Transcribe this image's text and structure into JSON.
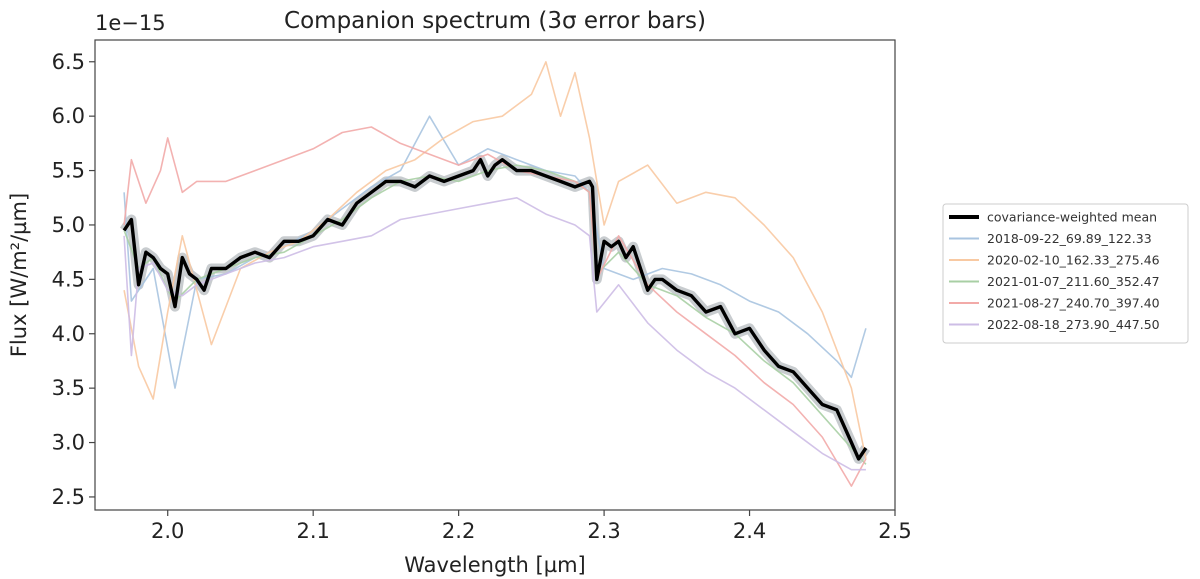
{
  "chart_data": {
    "type": "line",
    "title": "Companion spectrum (3σ error bars)",
    "xlabel": "Wavelength [µm]",
    "ylabel": "Flux [W/m²/µm]",
    "y_offset_label": "1e−15",
    "xlim": [
      1.95,
      2.5
    ],
    "ylim": [
      2.38,
      6.7
    ],
    "xticks": [
      2.0,
      2.1,
      2.2,
      2.3,
      2.4,
      2.5
    ],
    "xtick_labels": [
      "2.0",
      "2.1",
      "2.2",
      "2.3",
      "2.4",
      "2.5"
    ],
    "yticks": [
      2.5,
      3.0,
      3.5,
      4.0,
      4.5,
      5.0,
      5.5,
      6.0,
      6.5
    ],
    "ytick_labels": [
      "2.5",
      "3.0",
      "3.5",
      "4.0",
      "4.5",
      "5.0",
      "5.5",
      "6.0",
      "6.5"
    ],
    "legend_position": "right, outside plot",
    "error_band_color": "#9aa3a8",
    "series": [
      {
        "name": "2018-09-22_69.89_122.33",
        "color": "#a9c4e0",
        "x": [
          1.97,
          1.975,
          1.99,
          2.005,
          2.02,
          2.04,
          2.06,
          2.08,
          2.1,
          2.12,
          2.14,
          2.16,
          2.18,
          2.2,
          2.22,
          2.24,
          2.26,
          2.28,
          2.29,
          2.3,
          2.32,
          2.34,
          2.36,
          2.38,
          2.4,
          2.42,
          2.44,
          2.46,
          2.47,
          2.48
        ],
        "y": [
          5.3,
          4.3,
          4.6,
          3.5,
          4.5,
          4.55,
          4.7,
          4.8,
          4.95,
          5.15,
          5.35,
          5.5,
          6.0,
          5.55,
          5.7,
          5.6,
          5.5,
          5.45,
          5.3,
          4.6,
          4.5,
          4.6,
          4.55,
          4.45,
          4.3,
          4.2,
          4.0,
          3.75,
          3.6,
          4.05
        ]
      },
      {
        "name": "2020-02-10_162.33_275.46",
        "color": "#f8c9a2",
        "x": [
          1.97,
          1.98,
          1.99,
          2.0,
          2.01,
          2.02,
          2.03,
          2.05,
          2.07,
          2.09,
          2.11,
          2.13,
          2.15,
          2.17,
          2.19,
          2.21,
          2.23,
          2.25,
          2.26,
          2.27,
          2.28,
          2.29,
          2.3,
          2.31,
          2.33,
          2.35,
          2.37,
          2.39,
          2.41,
          2.43,
          2.45,
          2.47,
          2.48
        ],
        "y": [
          4.4,
          3.7,
          3.4,
          4.2,
          4.9,
          4.4,
          3.9,
          4.6,
          4.75,
          4.85,
          5.05,
          5.3,
          5.5,
          5.6,
          5.8,
          5.95,
          6.0,
          6.2,
          6.5,
          6.0,
          6.4,
          5.8,
          5.0,
          5.4,
          5.55,
          5.2,
          5.3,
          5.25,
          5.0,
          4.7,
          4.2,
          3.5,
          2.85
        ]
      },
      {
        "name": "2021-01-07_211.60_352.47",
        "color": "#a8cfa4",
        "x": [
          1.97,
          1.98,
          1.99,
          2.0,
          2.005,
          2.02,
          2.04,
          2.06,
          2.08,
          2.1,
          2.12,
          2.14,
          2.16,
          2.18,
          2.2,
          2.22,
          2.24,
          2.26,
          2.28,
          2.29,
          2.295,
          2.31,
          2.33,
          2.35,
          2.37,
          2.39,
          2.41,
          2.43,
          2.45,
          2.47,
          2.48
        ],
        "y": [
          4.95,
          4.6,
          4.7,
          4.4,
          4.3,
          4.5,
          4.6,
          4.7,
          4.75,
          4.9,
          5.05,
          5.25,
          5.4,
          5.45,
          5.4,
          5.5,
          5.55,
          5.5,
          5.4,
          5.3,
          4.55,
          4.75,
          4.45,
          4.35,
          4.15,
          4.0,
          3.75,
          3.55,
          3.25,
          2.95,
          2.8
        ]
      },
      {
        "name": "2021-08-27_240.70_397.40",
        "color": "#f2aaa8",
        "x": [
          1.97,
          1.975,
          1.985,
          1.995,
          2.0,
          2.01,
          2.02,
          2.04,
          2.06,
          2.08,
          2.1,
          2.12,
          2.14,
          2.16,
          2.18,
          2.2,
          2.22,
          2.24,
          2.26,
          2.28,
          2.29,
          2.295,
          2.31,
          2.33,
          2.35,
          2.37,
          2.39,
          2.41,
          2.43,
          2.45,
          2.47,
          2.48
        ],
        "y": [
          5.0,
          5.6,
          5.2,
          5.5,
          5.8,
          5.3,
          5.4,
          5.4,
          5.5,
          5.6,
          5.7,
          5.85,
          5.9,
          5.75,
          5.65,
          5.55,
          5.65,
          5.5,
          5.45,
          5.4,
          5.3,
          4.5,
          4.9,
          4.45,
          4.2,
          4.0,
          3.8,
          3.55,
          3.35,
          3.05,
          2.6,
          2.85
        ]
      },
      {
        "name": "2022-08-18_273.90_447.50",
        "color": "#cdbde6",
        "x": [
          1.97,
          1.975,
          1.98,
          1.99,
          2.0,
          2.01,
          2.02,
          2.04,
          2.06,
          2.08,
          2.1,
          2.12,
          2.14,
          2.16,
          2.18,
          2.2,
          2.22,
          2.24,
          2.26,
          2.28,
          2.29,
          2.295,
          2.31,
          2.33,
          2.35,
          2.37,
          2.39,
          2.41,
          2.43,
          2.45,
          2.47,
          2.48
        ],
        "y": [
          4.9,
          3.8,
          4.6,
          4.65,
          4.4,
          4.35,
          4.45,
          4.55,
          4.65,
          4.7,
          4.8,
          4.85,
          4.9,
          5.05,
          5.1,
          5.15,
          5.2,
          5.25,
          5.1,
          5.0,
          4.9,
          4.2,
          4.45,
          4.1,
          3.85,
          3.65,
          3.5,
          3.3,
          3.1,
          2.9,
          2.75,
          2.75
        ]
      },
      {
        "name": "covariance-weighted mean",
        "color": "#000000",
        "x": [
          1.97,
          1.975,
          1.98,
          1.985,
          1.99,
          1.995,
          2.0,
          2.005,
          2.01,
          2.015,
          2.02,
          2.025,
          2.03,
          2.04,
          2.05,
          2.06,
          2.07,
          2.08,
          2.09,
          2.1,
          2.11,
          2.12,
          2.13,
          2.14,
          2.15,
          2.16,
          2.17,
          2.18,
          2.19,
          2.2,
          2.21,
          2.215,
          2.22,
          2.225,
          2.23,
          2.24,
          2.25,
          2.26,
          2.27,
          2.28,
          2.29,
          2.292,
          2.295,
          2.3,
          2.305,
          2.31,
          2.315,
          2.32,
          2.33,
          2.335,
          2.34,
          2.35,
          2.36,
          2.37,
          2.38,
          2.39,
          2.4,
          2.41,
          2.42,
          2.43,
          2.44,
          2.45,
          2.46,
          2.47,
          2.475,
          2.48
        ],
        "y": [
          4.95,
          5.05,
          4.45,
          4.75,
          4.7,
          4.6,
          4.55,
          4.25,
          4.7,
          4.55,
          4.5,
          4.4,
          4.6,
          4.6,
          4.7,
          4.75,
          4.7,
          4.85,
          4.85,
          4.9,
          5.05,
          5.0,
          5.2,
          5.3,
          5.4,
          5.4,
          5.35,
          5.45,
          5.4,
          5.45,
          5.5,
          5.6,
          5.45,
          5.55,
          5.6,
          5.5,
          5.5,
          5.45,
          5.4,
          5.35,
          5.4,
          5.35,
          4.5,
          4.85,
          4.8,
          4.85,
          4.7,
          4.8,
          4.4,
          4.5,
          4.5,
          4.4,
          4.35,
          4.2,
          4.25,
          4.0,
          4.05,
          3.85,
          3.7,
          3.65,
          3.5,
          3.35,
          3.3,
          3.0,
          2.85,
          2.95
        ]
      }
    ],
    "legend_order": [
      5,
      0,
      1,
      2,
      3,
      4
    ]
  }
}
